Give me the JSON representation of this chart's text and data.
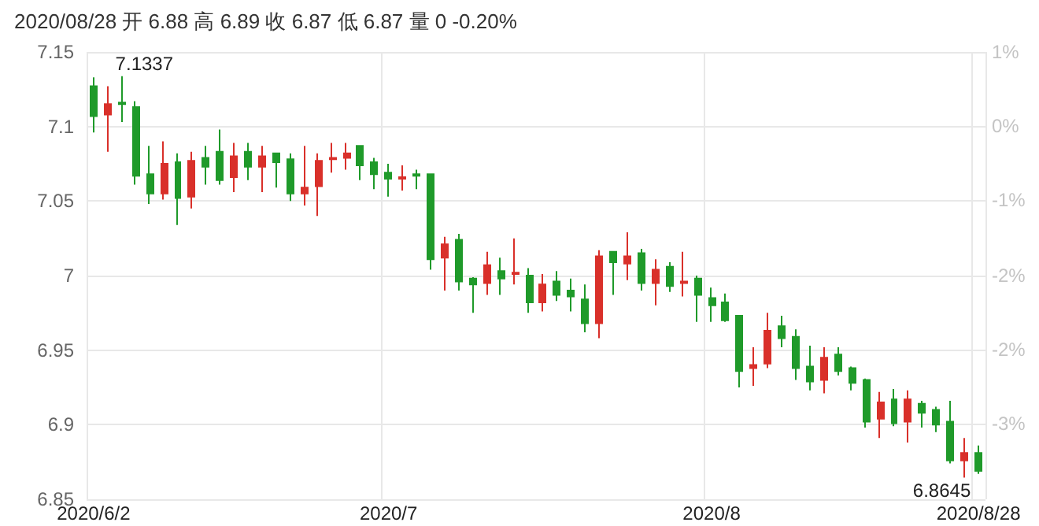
{
  "chart_data": {
    "type": "candlestick",
    "title": "2020/08/28 开 6.88 高 6.89 收 6.87 低 6.87 量 0 -0.20%",
    "categories": [
      "2020/6/2",
      null,
      null,
      null,
      null,
      null,
      null,
      null,
      null,
      null,
      null,
      null,
      null,
      null,
      null,
      null,
      null,
      null,
      null,
      null,
      null,
      "2020/7",
      null,
      null,
      null,
      null,
      null,
      null,
      null,
      null,
      null,
      null,
      null,
      null,
      null,
      null,
      null,
      null,
      null,
      null,
      null,
      null,
      null,
      null,
      "2020/8",
      null,
      null,
      null,
      null,
      null,
      null,
      null,
      null,
      null,
      null,
      null,
      null,
      null,
      null,
      null,
      null,
      null,
      null,
      "2020/8/28"
    ],
    "ohlc": [
      [
        7.127,
        7.133,
        7.096,
        7.107
      ],
      [
        7.108,
        7.127,
        7.083,
        7.115
      ],
      [
        7.116,
        7.1337,
        7.103,
        7.115
      ],
      [
        7.113,
        7.117,
        7.061,
        7.067
      ],
      [
        7.068,
        7.087,
        7.048,
        7.055
      ],
      [
        7.055,
        7.09,
        7.051,
        7.075
      ],
      [
        7.076,
        7.082,
        7.034,
        7.052
      ],
      [
        7.053,
        7.083,
        7.045,
        7.077
      ],
      [
        7.079,
        7.087,
        7.061,
        7.073
      ],
      [
        7.083,
        7.098,
        7.061,
        7.064
      ],
      [
        7.066,
        7.089,
        7.056,
        7.08
      ],
      [
        7.083,
        7.089,
        7.064,
        7.073
      ],
      [
        7.073,
        7.087,
        7.056,
        7.08
      ],
      [
        7.082,
        7.082,
        7.059,
        7.076
      ],
      [
        7.078,
        7.082,
        7.05,
        7.055
      ],
      [
        7.055,
        7.087,
        7.047,
        7.059
      ],
      [
        7.06,
        7.082,
        7.04,
        7.077
      ],
      [
        7.078,
        7.089,
        7.069,
        7.079
      ],
      [
        7.079,
        7.089,
        7.071,
        7.082
      ],
      [
        7.087,
        7.087,
        7.064,
        7.074
      ],
      [
        7.076,
        7.079,
        7.058,
        7.068
      ],
      [
        7.069,
        7.075,
        7.053,
        7.065
      ],
      [
        7.065,
        7.074,
        7.057,
        7.066
      ],
      [
        7.068,
        7.071,
        7.058,
        7.067
      ],
      [
        7.068,
        7.068,
        7.004,
        7.011
      ],
      [
        7.012,
        7.026,
        6.99,
        7.021
      ],
      [
        7.024,
        7.028,
        6.99,
        6.996
      ],
      [
        6.998,
        6.999,
        6.975,
        6.994
      ],
      [
        6.995,
        7.016,
        6.987,
        7.007
      ],
      [
        7.003,
        7.012,
        6.987,
        6.998
      ],
      [
        7.001,
        7.025,
        6.994,
        7.002
      ],
      [
        7.0,
        7.005,
        6.975,
        6.982
      ],
      [
        6.982,
        7.001,
        6.976,
        6.994
      ],
      [
        6.996,
        7.003,
        6.983,
        6.987
      ],
      [
        6.99,
        6.998,
        6.976,
        6.986
      ],
      [
        6.984,
        6.994,
        6.962,
        6.968
      ],
      [
        6.968,
        7.017,
        6.958,
        7.013
      ],
      [
        7.016,
        7.016,
        6.987,
        7.009
      ],
      [
        7.008,
        7.029,
        6.997,
        7.013
      ],
      [
        7.015,
        7.018,
        6.99,
        6.995
      ],
      [
        6.995,
        7.011,
        6.98,
        7.004
      ],
      [
        7.006,
        7.009,
        6.989,
        6.993
      ],
      [
        6.995,
        7.016,
        6.986,
        6.996
      ],
      [
        6.998,
        7.0,
        6.969,
        6.987
      ],
      [
        6.985,
        6.992,
        6.969,
        6.98
      ],
      [
        6.982,
        6.988,
        6.969,
        6.97
      ],
      [
        6.973,
        6.973,
        6.925,
        6.936
      ],
      [
        6.938,
        6.952,
        6.926,
        6.94
      ],
      [
        6.941,
        6.975,
        6.938,
        6.963
      ],
      [
        6.966,
        6.973,
        6.952,
        6.958
      ],
      [
        6.959,
        6.964,
        6.93,
        6.938
      ],
      [
        6.939,
        6.953,
        6.923,
        6.929
      ],
      [
        6.93,
        6.952,
        6.921,
        6.945
      ],
      [
        6.947,
        6.952,
        6.933,
        6.936
      ],
      [
        6.938,
        6.939,
        6.923,
        6.928
      ],
      [
        6.93,
        6.931,
        6.898,
        6.902
      ],
      [
        6.904,
        6.922,
        6.891,
        6.915
      ],
      [
        6.917,
        6.924,
        6.899,
        6.901
      ],
      [
        6.902,
        6.923,
        6.888,
        6.917
      ],
      [
        6.914,
        6.916,
        6.898,
        6.908
      ],
      [
        6.91,
        6.912,
        6.895,
        6.9
      ],
      [
        6.902,
        6.916,
        6.874,
        6.876
      ],
      [
        6.876,
        6.891,
        6.8645,
        6.881
      ],
      [
        6.881,
        6.886,
        6.867,
        6.869
      ]
    ],
    "colors": [
      "#1f9a2a",
      "#d9302a",
      "#1f9a2a",
      "#1f9a2a",
      "#1f9a2a",
      "#d9302a",
      "#1f9a2a",
      "#d9302a",
      "#1f9a2a",
      "#1f9a2a",
      "#d9302a",
      "#1f9a2a",
      "#d9302a",
      "#1f9a2a",
      "#1f9a2a",
      "#d9302a",
      "#d9302a",
      "#d9302a",
      "#d9302a",
      "#1f9a2a",
      "#1f9a2a",
      "#1f9a2a",
      "#d9302a",
      "#1f9a2a",
      "#1f9a2a",
      "#d9302a",
      "#1f9a2a",
      "#1f9a2a",
      "#d9302a",
      "#1f9a2a",
      "#d9302a",
      "#1f9a2a",
      "#d9302a",
      "#1f9a2a",
      "#1f9a2a",
      "#1f9a2a",
      "#d9302a",
      "#1f9a2a",
      "#d9302a",
      "#1f9a2a",
      "#d9302a",
      "#1f9a2a",
      "#d9302a",
      "#1f9a2a",
      "#1f9a2a",
      "#1f9a2a",
      "#1f9a2a",
      "#d9302a",
      "#d9302a",
      "#1f9a2a",
      "#1f9a2a",
      "#1f9a2a",
      "#d9302a",
      "#1f9a2a",
      "#1f9a2a",
      "#1f9a2a",
      "#d9302a",
      "#1f9a2a",
      "#d9302a",
      "#1f9a2a",
      "#1f9a2a",
      "#1f9a2a",
      "#d9302a",
      "#1f9a2a"
    ],
    "ylim": [
      6.85,
      7.15
    ],
    "yticks": [
      6.85,
      6.9,
      6.95,
      7,
      7.05,
      7.1,
      7.15
    ],
    "y2lim": [
      -3.66,
      0.56
    ],
    "y2ticks": [
      {
        "value": -2.95,
        "label": "-3%"
      },
      {
        "value": -2.25,
        "label": "-2%"
      },
      {
        "value": -1.55,
        "label": "-2%"
      },
      {
        "value": -0.84,
        "label": "-1%"
      },
      {
        "value": -0.14,
        "label": "0%"
      },
      {
        "value": 0.56,
        "label": "1%"
      }
    ],
    "annotations": [
      "7.1337",
      "6.8645"
    ],
    "grid": true
  }
}
